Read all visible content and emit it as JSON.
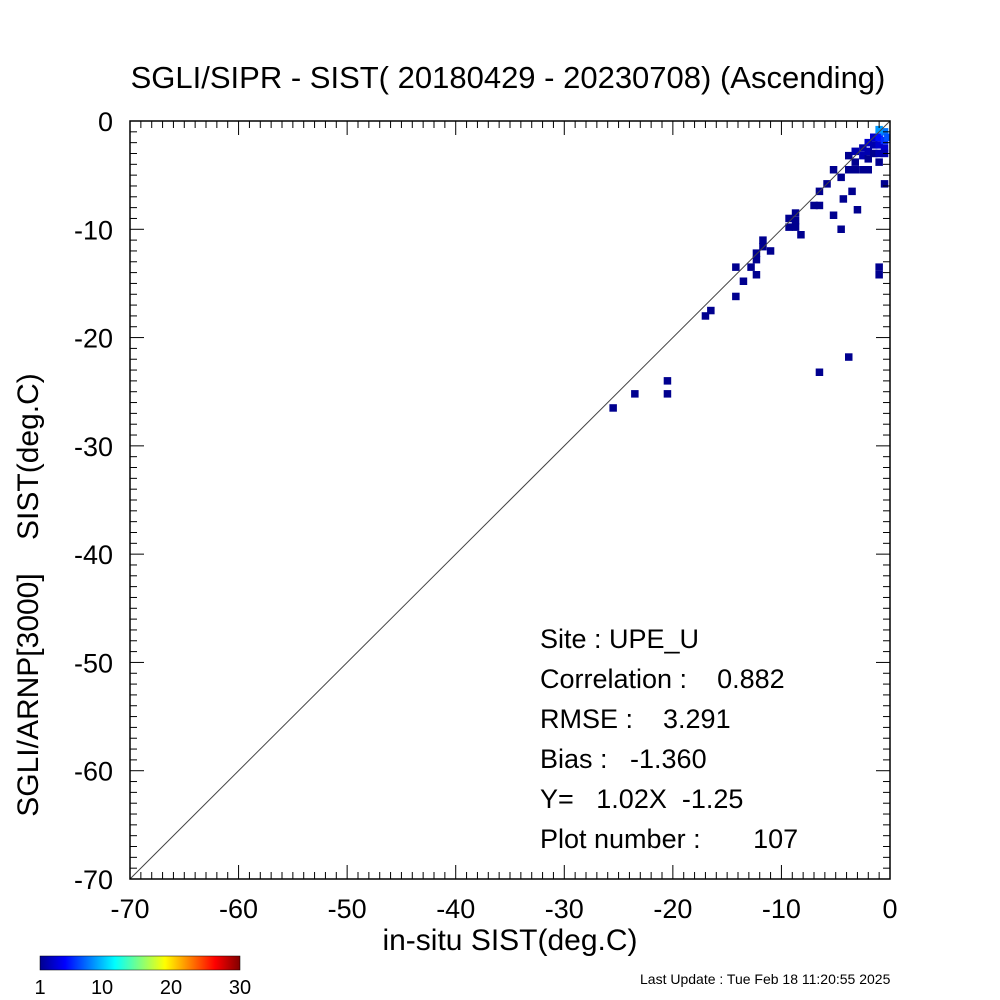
{
  "chart_data": {
    "type": "heatmap",
    "title": "SGLI/SIPR - SIST( 20180429 - 20230708) (Ascending)",
    "xlabel": "in-situ SIST(deg.C)",
    "ylabel": "SGLI/ARNP[3000]    SIST(deg.C)",
    "xlim": [
      -70,
      0
    ],
    "ylim": [
      -70,
      0
    ],
    "x_ticks": [
      "-70",
      "-60",
      "-50",
      "-40",
      "-30",
      "-20",
      "-10",
      "0"
    ],
    "y_ticks": [
      "0",
      "-10",
      "-20",
      "-30",
      "-40",
      "-50",
      "-60",
      "-70"
    ],
    "reference_line": "1:1",
    "grid": false,
    "stats": [
      "Site : UPE_U",
      "Correlation :    0.882",
      "RMSE :    3.291",
      "Bias :   -1.360",
      "Y=   1.02X  -1.25",
      "Plot number :       107"
    ],
    "colorbar": {
      "min": 1,
      "max": 30,
      "tick_labels": [
        "1",
        "10",
        "20",
        "30"
      ],
      "tick_values": [
        1,
        10,
        20,
        30
      ]
    },
    "cells": [
      {
        "x": -25.5,
        "y": -26.5,
        "count": 1
      },
      {
        "x": -23.5,
        "y": -25.2,
        "count": 1
      },
      {
        "x": -20.5,
        "y": -25.2,
        "count": 1
      },
      {
        "x": -20.5,
        "y": -24.0,
        "count": 1
      },
      {
        "x": -17.0,
        "y": -18.0,
        "count": 1
      },
      {
        "x": -16.5,
        "y": -17.5,
        "count": 1
      },
      {
        "x": -14.2,
        "y": -16.2,
        "count": 1
      },
      {
        "x": -14.2,
        "y": -13.5,
        "count": 1
      },
      {
        "x": -13.5,
        "y": -14.8,
        "count": 1
      },
      {
        "x": -12.8,
        "y": -13.5,
        "count": 1
      },
      {
        "x": -12.3,
        "y": -14.2,
        "count": 1
      },
      {
        "x": -12.3,
        "y": -12.8,
        "count": 1
      },
      {
        "x": -12.3,
        "y": -12.2,
        "count": 1
      },
      {
        "x": -11.7,
        "y": -11.0,
        "count": 1
      },
      {
        "x": -11.7,
        "y": -11.6,
        "count": 1
      },
      {
        "x": -11.0,
        "y": -12.0,
        "count": 1
      },
      {
        "x": -9.3,
        "y": -9.8,
        "count": 1
      },
      {
        "x": -9.3,
        "y": -9.0,
        "count": 1
      },
      {
        "x": -8.7,
        "y": -8.5,
        "count": 1
      },
      {
        "x": -8.7,
        "y": -9.2,
        "count": 1
      },
      {
        "x": -8.7,
        "y": -9.8,
        "count": 1
      },
      {
        "x": -8.2,
        "y": -10.5,
        "count": 1
      },
      {
        "x": -7.0,
        "y": -7.8,
        "count": 1
      },
      {
        "x": -6.5,
        "y": -7.8,
        "count": 1
      },
      {
        "x": -6.5,
        "y": -6.5,
        "count": 1
      },
      {
        "x": -6.5,
        "y": -23.2,
        "count": 1
      },
      {
        "x": -5.8,
        "y": -5.8,
        "count": 1
      },
      {
        "x": -5.2,
        "y": -4.5,
        "count": 1
      },
      {
        "x": -5.2,
        "y": -8.7,
        "count": 1
      },
      {
        "x": -4.5,
        "y": -5.2,
        "count": 1
      },
      {
        "x": -4.5,
        "y": -10.0,
        "count": 1
      },
      {
        "x": -4.3,
        "y": -7.2,
        "count": 1
      },
      {
        "x": -3.8,
        "y": -3.2,
        "count": 1
      },
      {
        "x": -3.8,
        "y": -4.5,
        "count": 1
      },
      {
        "x": -3.8,
        "y": -21.8,
        "count": 1
      },
      {
        "x": -3.5,
        "y": -6.5,
        "count": 1
      },
      {
        "x": -3.2,
        "y": -2.8,
        "count": 2
      },
      {
        "x": -3.2,
        "y": -3.8,
        "count": 1
      },
      {
        "x": -3.2,
        "y": -4.5,
        "count": 1
      },
      {
        "x": -3.0,
        "y": -8.2,
        "count": 1
      },
      {
        "x": -2.5,
        "y": -2.5,
        "count": 2
      },
      {
        "x": -2.5,
        "y": -3.2,
        "count": 2
      },
      {
        "x": -2.5,
        "y": -4.5,
        "count": 1
      },
      {
        "x": -2.0,
        "y": -2.0,
        "count": 3
      },
      {
        "x": -2.0,
        "y": -2.8,
        "count": 2
      },
      {
        "x": -2.0,
        "y": -3.5,
        "count": 1
      },
      {
        "x": -2.0,
        "y": -4.5,
        "count": 1
      },
      {
        "x": -1.5,
        "y": -1.5,
        "count": 3
      },
      {
        "x": -1.5,
        "y": -2.2,
        "count": 2
      },
      {
        "x": -1.5,
        "y": -3.0,
        "count": 1
      },
      {
        "x": -1.0,
        "y": -1.5,
        "count": 5
      },
      {
        "x": -1.0,
        "y": -2.2,
        "count": 3
      },
      {
        "x": -1.0,
        "y": -3.0,
        "count": 2
      },
      {
        "x": -1.0,
        "y": -3.8,
        "count": 1
      },
      {
        "x": -1.0,
        "y": -13.5,
        "count": 1
      },
      {
        "x": -1.0,
        "y": -14.2,
        "count": 1
      },
      {
        "x": -0.5,
        "y": -1.0,
        "count": 8
      },
      {
        "x": -0.5,
        "y": -1.8,
        "count": 6
      },
      {
        "x": -0.5,
        "y": -2.5,
        "count": 3
      },
      {
        "x": -0.5,
        "y": -3.0,
        "count": 2
      },
      {
        "x": -0.5,
        "y": -5.8,
        "count": 1
      },
      {
        "x": -1.0,
        "y": -0.8,
        "count": 9
      },
      {
        "x": -0.2,
        "y": -1.5,
        "count": 7
      }
    ]
  },
  "footer": {
    "last_update": "Last Update : Tue Feb 18 11:20:55 2025"
  },
  "colors": {
    "frame": "#000000",
    "one_to_one_line": "#444444",
    "colormap": [
      "#00008f",
      "#0000ff",
      "#00ffff",
      "#ffff00",
      "#ff0000",
      "#800000"
    ]
  }
}
